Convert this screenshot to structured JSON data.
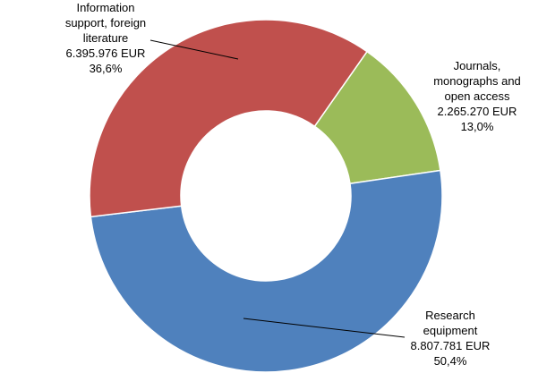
{
  "chart_data": {
    "type": "pie",
    "donut": true,
    "title": "",
    "legend": "none",
    "start_angle_deg": 35,
    "slices": [
      {
        "name": "Journals, monographs and open access",
        "label_lines": [
          "Journals,",
          "monographs and",
          "open access"
        ],
        "value": 2265270,
        "value_label": "2.265.270 EUR",
        "percent": 13.0,
        "percent_label": "13,0%",
        "color": "#9bbb59"
      },
      {
        "name": "Research equipment",
        "label_lines": [
          "Research",
          "equipment"
        ],
        "value": 8807781,
        "value_label": "8.807.781 EUR",
        "percent": 50.4,
        "percent_label": "50,4%",
        "color": "#4f81bd"
      },
      {
        "name": "Information support, foreign literature",
        "label_lines": [
          "Information",
          "support, foreign",
          "literature"
        ],
        "value": 6395976,
        "value_label": "6.395.976 EUR",
        "percent": 36.6,
        "percent_label": "36,6%",
        "color": "#c0504d"
      }
    ]
  }
}
